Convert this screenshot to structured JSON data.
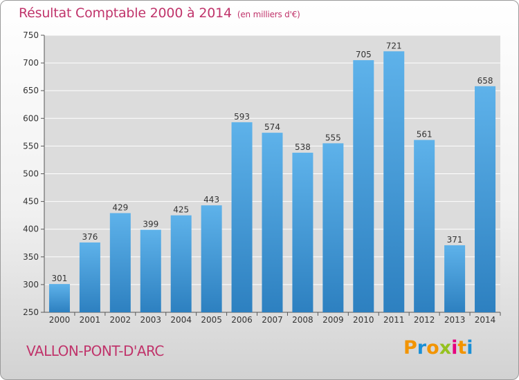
{
  "header": {
    "title": "Résultat Comptable 2000 à 2014",
    "unit": "(en milliers d'€)"
  },
  "footer": {
    "commune": "VALLON-PONT-D'ARC",
    "brand_letters": [
      "P",
      "r",
      "o",
      "x",
      "i",
      "t",
      "i"
    ],
    "brand_colors": [
      "#f29400",
      "#1a8fd6",
      "#f29400",
      "#95c11f",
      "#e6007e",
      "#f29400",
      "#1a8fd6"
    ]
  },
  "colors": {
    "bar_light": "#5eb2ea",
    "bar_dark": "#2d80c0",
    "grid": "#ffffff",
    "plot_bg": "#dcdcdc"
  },
  "chart_data": {
    "type": "bar",
    "title": "Résultat Comptable 2000 à 2014",
    "xlabel": "",
    "ylabel": "",
    "ylim": [
      250,
      750
    ],
    "yticks": [
      250,
      300,
      350,
      400,
      450,
      500,
      550,
      600,
      650,
      700,
      750
    ],
    "grid": true,
    "categories": [
      "2000",
      "2001",
      "2002",
      "2003",
      "2004",
      "2005",
      "2006",
      "2007",
      "2008",
      "2009",
      "2010",
      "2011",
      "2012",
      "2013",
      "2014"
    ],
    "values": [
      301,
      376,
      429,
      399,
      425,
      443,
      593,
      574,
      538,
      555,
      705,
      721,
      561,
      371,
      658
    ]
  }
}
